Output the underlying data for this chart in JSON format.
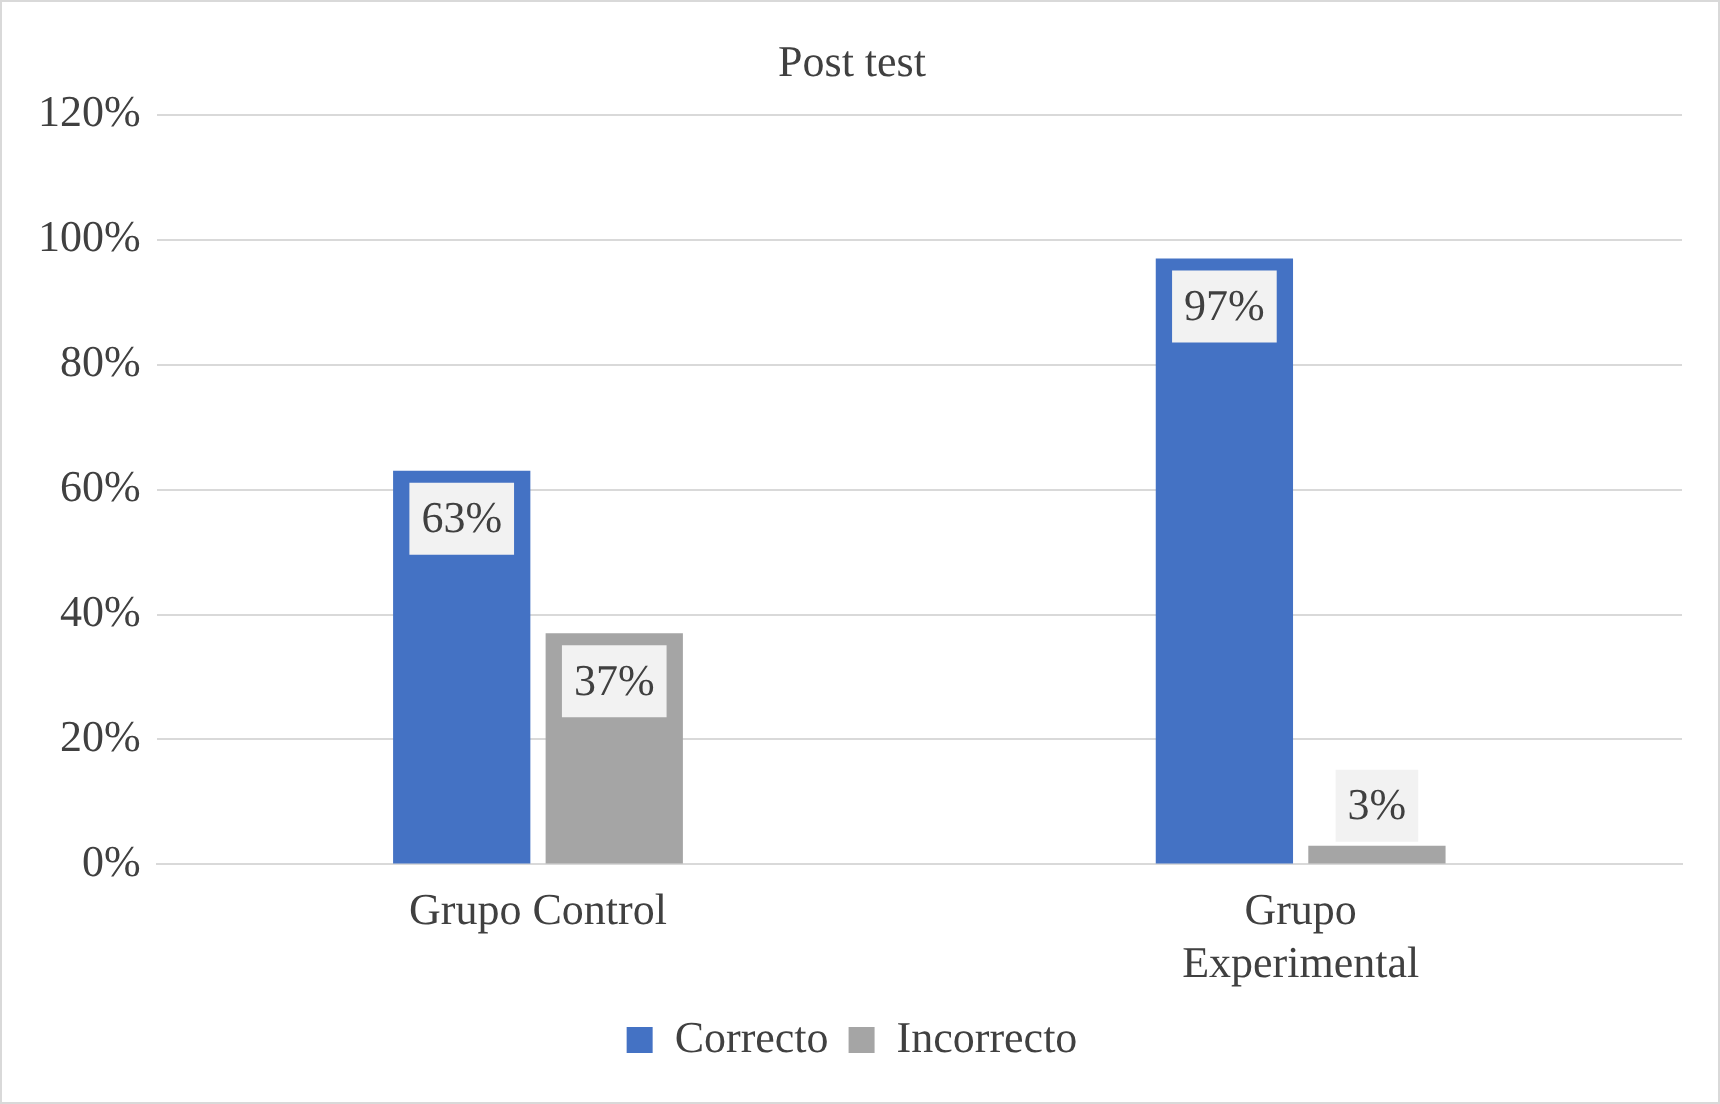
{
  "chart_data": {
    "type": "bar",
    "title": "Post test",
    "categories": [
      "Grupo Control",
      "Grupo Experimental"
    ],
    "series": [
      {
        "name": "Correcto",
        "color": "#4472c4",
        "values": [
          63,
          97
        ],
        "value_labels": [
          "63%",
          "97%"
        ]
      },
      {
        "name": "Incorrecto",
        "color": "#a5a5a5",
        "values": [
          37,
          3
        ],
        "value_labels": [
          "37%",
          "3%"
        ]
      }
    ],
    "ylim": [
      0,
      120
    ],
    "yticks": [
      {
        "value": 0,
        "label": "0%"
      },
      {
        "value": 20,
        "label": "20%"
      },
      {
        "value": 40,
        "label": "40%"
      },
      {
        "value": 60,
        "label": "60%"
      },
      {
        "value": 80,
        "label": "80%"
      },
      {
        "value": 100,
        "label": "100%"
      },
      {
        "value": 120,
        "label": "120%"
      }
    ],
    "grid": "y",
    "legend": "bottom"
  }
}
